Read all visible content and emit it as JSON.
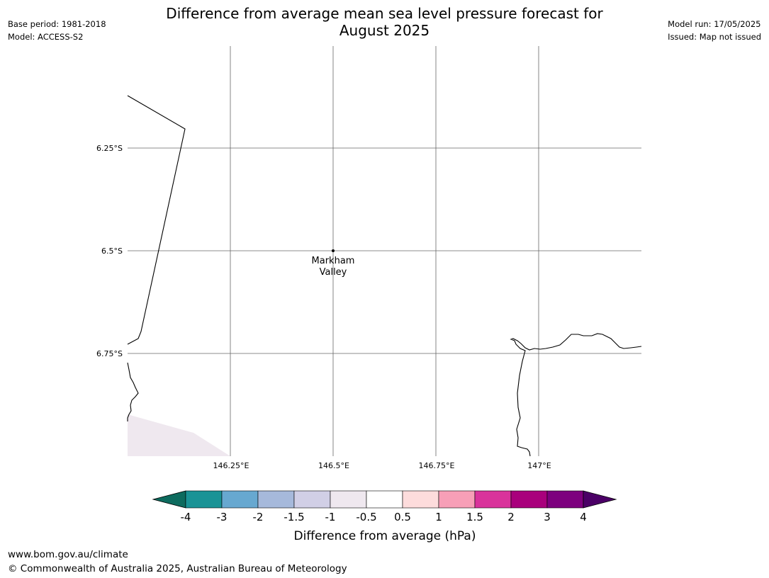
{
  "header": {
    "title_line1": "Difference from average mean sea level pressure forecast for",
    "title_line2": "August 2025",
    "base_period": "Base period: 1981-2018",
    "model": "Model: ACCESS-S2",
    "model_run": "Model run: 17/05/2025",
    "issued": "Issued: Map not issued"
  },
  "map": {
    "lat_labels": [
      "6.25°S",
      "6.5°S",
      "6.75°S"
    ],
    "lon_labels": [
      "146.25°E",
      "146.5°E",
      "146.75°E",
      "147°E"
    ],
    "place": {
      "name_line1": "Markham",
      "name_line2": "Valley"
    },
    "shaded_region_color": "#efe8ef"
  },
  "colorbar": {
    "label": "Difference from average (hPa)",
    "ticks": [
      "-4",
      "-3",
      "-2",
      "-1.5",
      "-1",
      "-0.5",
      "0.5",
      "1",
      "1.5",
      "2",
      "3",
      "4"
    ],
    "low_extend_color": "#0d6b5e",
    "high_extend_color": "#4b0066",
    "colors": [
      "#1a9396",
      "#67a8d0",
      "#a6b9db",
      "#d1cfe6",
      "#efe8ef",
      "#ffffff",
      "#fddcdc",
      "#f79fb7",
      "#d9339b",
      "#a9007c",
      "#7d007e"
    ]
  },
  "footer": {
    "url": "www.bom.gov.au/climate",
    "copyright": "© Commonwealth of Australia 2025, Australian Bureau of Meteorology"
  }
}
